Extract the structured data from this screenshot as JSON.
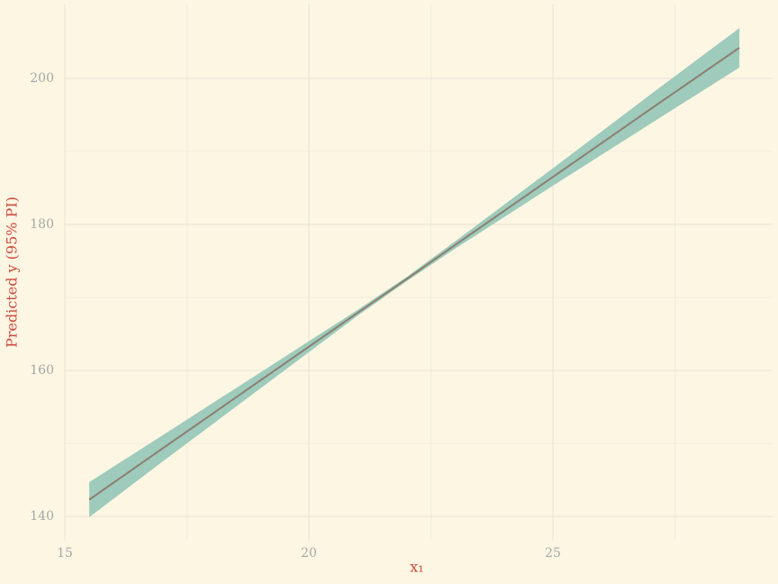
{
  "chart_data": {
    "type": "line-ribbon",
    "xlabel": "x₁",
    "ylabel": "Predicted y (95% PI)",
    "x": [
      15.5,
      17,
      19,
      21,
      22,
      23,
      25,
      27,
      28.82
    ],
    "series": [
      {
        "color": "#8c7f72",
        "band_color": "#9ecbbb",
        "values": [
          142.3,
          149.3,
          158.6,
          167.9,
          172.5,
          177.2,
          186.5,
          195.8,
          204.2
        ],
        "lower": [
          139.9,
          147.5,
          157.5,
          167.5,
          172.2,
          176.7,
          185.3,
          193.8,
          201.5
        ],
        "upper": [
          144.7,
          151.1,
          159.7,
          168.3,
          172.8,
          177.7,
          187.7,
          197.8,
          206.9
        ]
      }
    ],
    "xlim": [
      15,
      29.5
    ],
    "ylim": [
      136.67,
      210.12
    ],
    "xticks": [
      15,
      20,
      25
    ],
    "yticks": [
      140,
      160,
      180,
      200
    ],
    "x_minor": [
      17.5,
      22.5,
      27.5
    ],
    "y_minor": [
      150,
      170,
      190
    ],
    "grid": true,
    "background": "#fdf6e3"
  }
}
